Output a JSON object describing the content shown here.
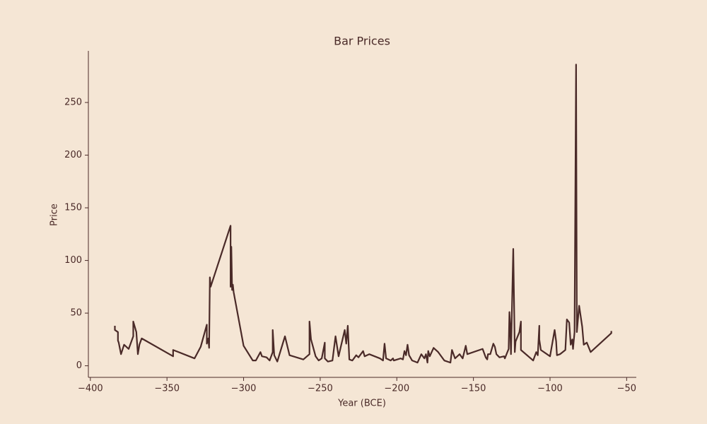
{
  "chart_data": {
    "type": "line",
    "title": "Bar Prices",
    "xlabel": "Year (BCE)",
    "ylabel": "Price",
    "color": "#4a2a28",
    "x": [
      -384,
      -384,
      -382,
      -382,
      -381.5,
      -380,
      -378,
      -375,
      -372,
      -372,
      -370,
      -369,
      -368,
      -366.5,
      -346,
      -346,
      -332,
      -328,
      -324,
      -324,
      -323,
      -322.5,
      -322,
      -321.5,
      -308.5,
      -308.5,
      -308,
      -307.5,
      -307,
      -306.5,
      -300,
      -294,
      -292,
      -289,
      -288,
      -285,
      -283,
      -281,
      -281,
      -280,
      -278,
      -273,
      -270,
      -261,
      -257,
      -257,
      -256,
      -253,
      -251,
      -249,
      -247,
      -247,
      -245,
      -242,
      -240,
      -238,
      -234,
      -233,
      -232,
      -231,
      -229,
      -226.5,
      -225,
      -222,
      -221,
      -218,
      -211,
      -209,
      -208,
      -207,
      -204,
      -202.5,
      -202,
      -197.5,
      -196,
      -195,
      -194,
      -193,
      -192,
      -190,
      -186.5,
      -184,
      -182,
      -181,
      -180,
      -179.5,
      -178.5,
      -176,
      -173,
      -169,
      -165,
      -164,
      -162,
      -159,
      -157,
      -155,
      -154,
      -144,
      -142,
      -141,
      -140.5,
      -139,
      -137,
      -136,
      -135,
      -133,
      -130,
      -129.5,
      -127,
      -126.5,
      -126,
      -125.5,
      -124,
      -123,
      -122.5,
      -120,
      -119,
      -119,
      -111,
      -109,
      -108,
      -107,
      -107,
      -106,
      -100,
      -97,
      -96,
      -95.5,
      -93.5,
      -90,
      -89,
      -87.5,
      -86.5,
      -85.5,
      -85,
      -84,
      -83,
      -82.5,
      -81,
      -79,
      -78,
      -76,
      -73.5,
      -60,
      -60
    ],
    "values": [
      38,
      34,
      32,
      24,
      22,
      11,
      20,
      16,
      28,
      42,
      32,
      11,
      20,
      26,
      9,
      15,
      7,
      18,
      39,
      21,
      26,
      17,
      84,
      75,
      133,
      75,
      113,
      72,
      77,
      70,
      19,
      5,
      5,
      13,
      9,
      8,
      5,
      13,
      34,
      10,
      4,
      28,
      10,
      6,
      11,
      42,
      25,
      9,
      5,
      7,
      22,
      7,
      4,
      5,
      28,
      9,
      34,
      21,
      38,
      6,
      5,
      10,
      8,
      14,
      9,
      11,
      7,
      5,
      21,
      7,
      5,
      7,
      5,
      7,
      6,
      14,
      10,
      20,
      10,
      5,
      3,
      11,
      7,
      11,
      3,
      14,
      9,
      17,
      13,
      5,
      3,
      15,
      7,
      11,
      7,
      19,
      11,
      16,
      8,
      6,
      11,
      11,
      21,
      18,
      11,
      8,
      9,
      7,
      16,
      51,
      38,
      11,
      111,
      13,
      23,
      32,
      42,
      15,
      5,
      13,
      10,
      38,
      25,
      15,
      9,
      34,
      23,
      10,
      11,
      15,
      44,
      41,
      20,
      25,
      16,
      32,
      286,
      32,
      57,
      37,
      20,
      22,
      13,
      31,
      33
    ],
    "xlim": [
      -401.3,
      -43.7
    ],
    "ylim": [
      -11,
      299
    ],
    "xticks": [
      {
        "value": -400,
        "label": "−400"
      },
      {
        "value": -350,
        "label": "−350"
      },
      {
        "value": -300,
        "label": "−300"
      },
      {
        "value": -250,
        "label": "−250"
      },
      {
        "value": -200,
        "label": "−200"
      },
      {
        "value": -150,
        "label": "−150"
      },
      {
        "value": -100,
        "label": "−100"
      },
      {
        "value": -50,
        "label": "−50"
      }
    ],
    "yticks": [
      0,
      50,
      100,
      150,
      200,
      250
    ]
  }
}
